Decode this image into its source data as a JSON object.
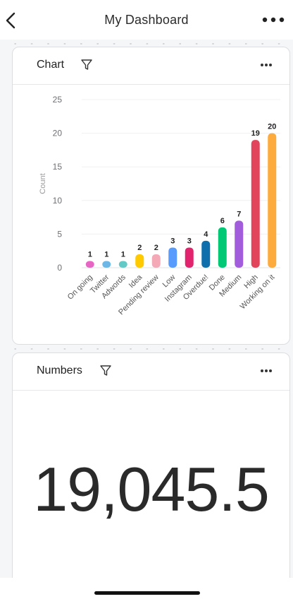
{
  "header": {
    "title": "My Dashboard",
    "back_icon": "chevron-left-icon",
    "more_icon": "more-horizontal-icon"
  },
  "chart_card": {
    "title": "Chart",
    "filter_icon": "filter-icon",
    "more_icon": "more-horizontal-icon"
  },
  "numbers_card": {
    "title": "Numbers",
    "filter_icon": "filter-icon",
    "more_icon": "more-horizontal-icon",
    "value": "19,045.5"
  },
  "chart_data": {
    "type": "bar",
    "ylabel": "Count",
    "ylim": [
      0,
      25
    ],
    "yticks": [
      0,
      5,
      10,
      15,
      20,
      25
    ],
    "grid": true,
    "categories": [
      "On going",
      "Twitter",
      "Adwords",
      "Idea",
      "Pending review",
      "Low",
      "Instagram",
      "Overdue!",
      "Done",
      "Medium",
      "High",
      "Working on it"
    ],
    "values": [
      1,
      1,
      1,
      2,
      2,
      3,
      3,
      4,
      6,
      7,
      19,
      20
    ],
    "colors": [
      "#e667c3",
      "#6cb7e6",
      "#63c9c6",
      "#ffcb00",
      "#f4a9b6",
      "#579bfc",
      "#e2236d",
      "#0f6fad",
      "#00c875",
      "#a25ddc",
      "#e2445c",
      "#fdab3d"
    ]
  }
}
